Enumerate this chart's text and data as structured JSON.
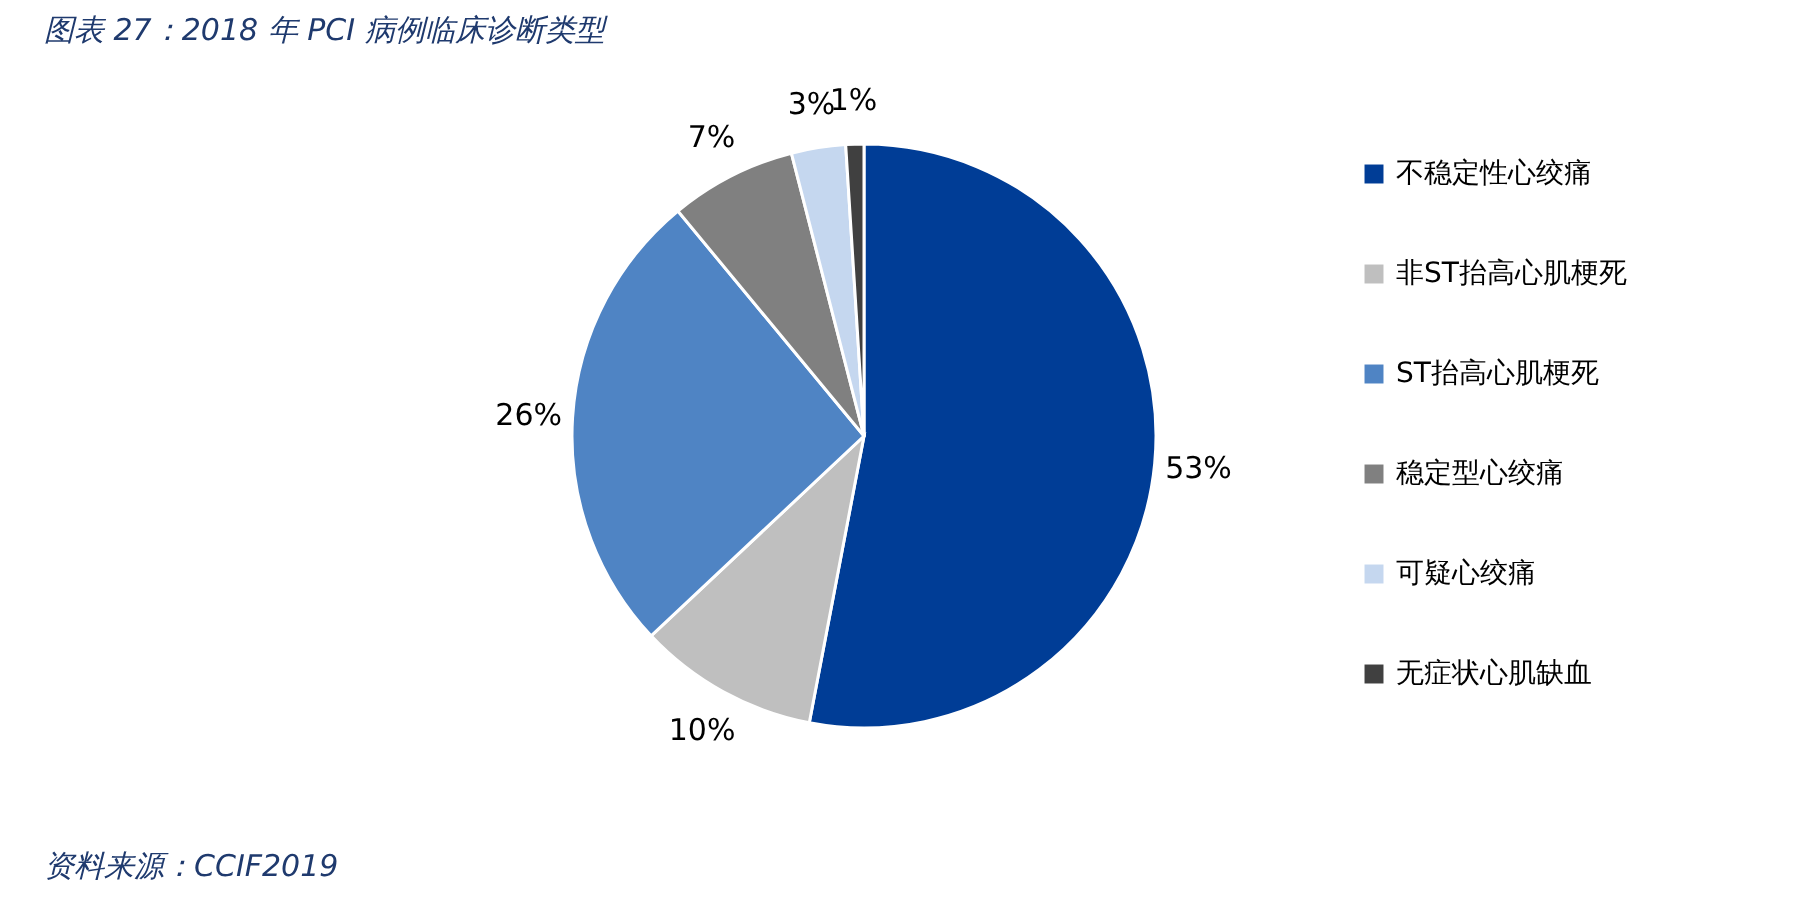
{
  "chart_data": {
    "type": "pie",
    "title": "图表 27：2018 年 PCI 病例临床诊断类型",
    "categories": [
      "不稳定性心绞痛",
      "非ST抬高心肌梗死",
      "ST抬高心肌梗死",
      "稳定型心绞痛",
      "可疑心绞痛",
      "无症状心肌缺血"
    ],
    "values": [
      53,
      10,
      26,
      7,
      3,
      1
    ],
    "value_labels": [
      "53%",
      "10%",
      "26%",
      "7%",
      "3%",
      "1%"
    ],
    "colors": [
      "#003d96",
      "#bfbfbf",
      "#4f84c4",
      "#808080",
      "#c5d7ef",
      "#404040"
    ],
    "legend": "right",
    "annotations": [
      "资料来源：CCIF2019"
    ]
  }
}
